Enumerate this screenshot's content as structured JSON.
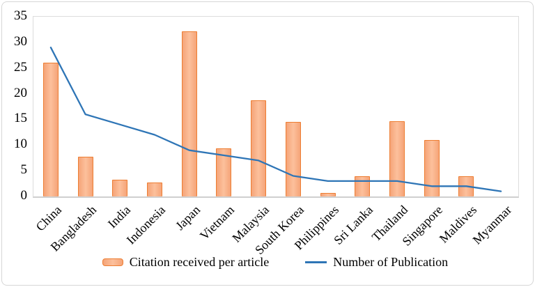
{
  "chart_data": {
    "type": "combo-bar-line",
    "title": "",
    "categories": [
      "China",
      "Bangladesh",
      "India",
      "Indonesia",
      "Japan",
      "Vietnam",
      "Malaysia",
      "South Korea",
      "Philippines",
      "Sri Lanka",
      "Thailand",
      "Singapore",
      "Maldives",
      "Myanmar"
    ],
    "series": [
      {
        "name": "Citation received per article",
        "type": "bar",
        "fill": "#f5a478",
        "fill_light": "#fcc09c",
        "border": "#ed7d31",
        "values": [
          26,
          7.7,
          3.2,
          2.7,
          32.2,
          9.4,
          18.7,
          14.5,
          0.7,
          4,
          14.7,
          11,
          4,
          0
        ]
      },
      {
        "name": "Number of Publication",
        "type": "line",
        "color": "#2e75b6",
        "values": [
          29,
          16,
          14,
          12,
          9,
          8,
          7,
          4,
          3,
          3,
          3,
          2,
          2,
          1
        ]
      }
    ],
    "ylim": [
      0,
      35
    ],
    "yticks": [
      35,
      30,
      25,
      20,
      15,
      10,
      5,
      0
    ],
    "xlabel": "",
    "ylabel": "",
    "grid": false,
    "legend_position": "bottom-center",
    "x_label_rotation": -45
  },
  "figure": {
    "background": "#ffffff",
    "border_color": "#d6d6d6",
    "plot_border_color": "#dcdcdc",
    "axis_color": "#cfcfcf"
  }
}
